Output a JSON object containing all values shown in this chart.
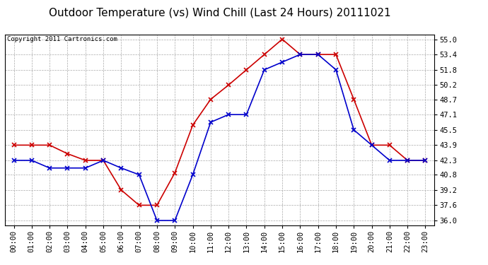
{
  "title": "Outdoor Temperature (vs) Wind Chill (Last 24 Hours) 20111021",
  "copyright": "Copyright 2011 Cartronics.com",
  "x_labels": [
    "00:00",
    "01:00",
    "02:00",
    "03:00",
    "04:00",
    "05:00",
    "06:00",
    "07:00",
    "08:00",
    "09:00",
    "10:00",
    "11:00",
    "12:00",
    "13:00",
    "14:00",
    "15:00",
    "16:00",
    "17:00",
    "18:00",
    "19:00",
    "20:00",
    "21:00",
    "22:00",
    "23:00"
  ],
  "red_data": [
    43.9,
    43.9,
    43.9,
    43.0,
    42.3,
    42.3,
    39.2,
    37.6,
    37.6,
    41.0,
    46.0,
    48.7,
    50.2,
    51.8,
    53.4,
    55.0,
    53.4,
    53.4,
    53.4,
    48.7,
    43.9,
    43.9,
    42.3,
    42.3
  ],
  "blue_data": [
    42.3,
    42.3,
    41.5,
    41.5,
    41.5,
    42.3,
    41.5,
    40.8,
    36.0,
    36.0,
    40.8,
    46.3,
    47.1,
    47.1,
    51.8,
    52.6,
    53.4,
    53.4,
    51.8,
    45.5,
    43.9,
    42.3,
    42.3,
    42.3
  ],
  "y_ticks": [
    36.0,
    37.6,
    39.2,
    40.8,
    42.3,
    43.9,
    45.5,
    47.1,
    48.7,
    50.2,
    51.8,
    53.4,
    55.0
  ],
  "ylim": [
    35.5,
    55.5
  ],
  "red_color": "#cc0000",
  "blue_color": "#0000cc",
  "bg_color": "#ffffff",
  "plot_bg_color": "#ffffff",
  "grid_color": "#aaaaaa",
  "title_fontsize": 11,
  "copyright_fontsize": 6.5,
  "tick_fontsize": 7.5,
  "dpi": 100
}
